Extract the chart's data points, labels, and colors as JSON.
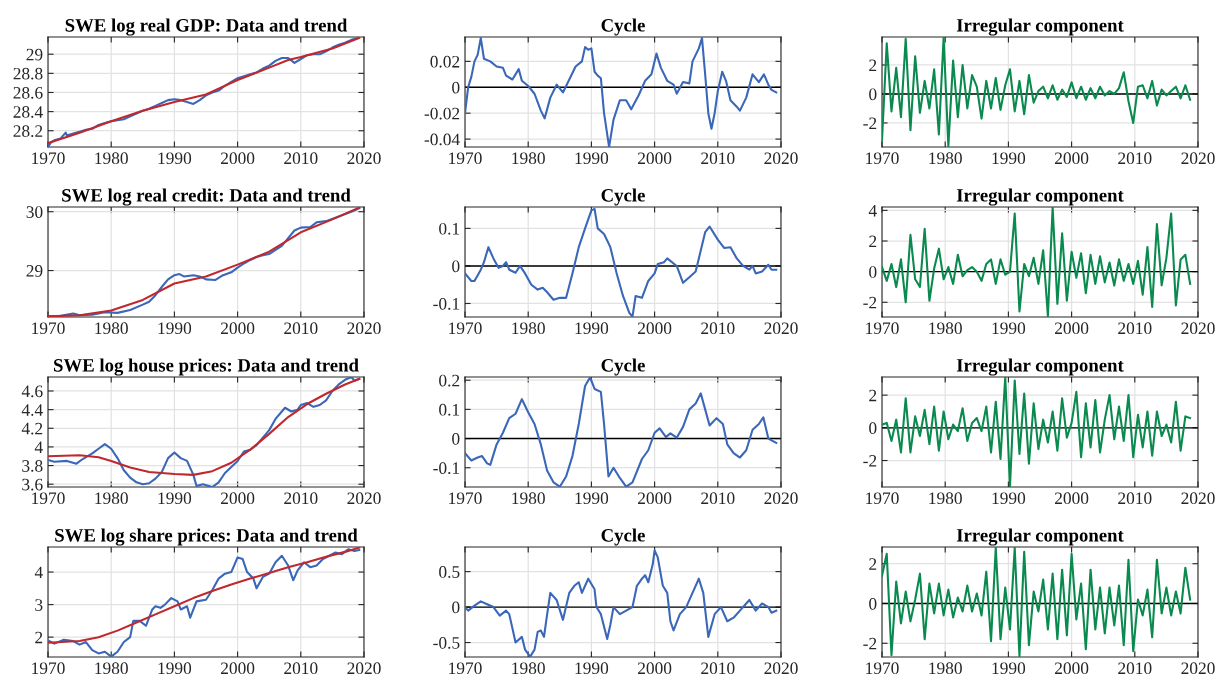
{
  "chart_data": [
    {
      "type": "line",
      "title": "SWE log real GDP: Data and trend",
      "xlim": [
        1970,
        2020
      ],
      "xticks": [
        1970,
        1980,
        1990,
        2000,
        2010,
        2020
      ],
      "ylim": [
        28.03,
        29.18
      ],
      "yticks": [
        28.2,
        28.4,
        28.6,
        28.8,
        29
      ],
      "grid": true,
      "series": [
        {
          "color": "#3a67b8",
          "x": [
            1970,
            1970.5,
            1971,
            1972,
            1972.8,
            1973,
            1974,
            1975,
            1976,
            1977,
            1978,
            1979,
            1980,
            1981,
            1982,
            1983,
            1984,
            1985,
            1986,
            1987,
            1988,
            1989,
            1990,
            1991,
            1992,
            1993,
            1994,
            1995,
            1996,
            1997,
            1998,
            1999,
            2000,
            2001,
            2002,
            2003,
            2004,
            2005,
            2006,
            2007,
            2008,
            2009,
            2010,
            2011,
            2012,
            2013,
            2014,
            2015,
            2016,
            2017,
            2018,
            2019
          ],
          "values": [
            28.03,
            28.08,
            28.1,
            28.12,
            28.18,
            28.15,
            28.17,
            28.19,
            28.21,
            28.22,
            28.26,
            28.28,
            28.3,
            28.31,
            28.32,
            28.35,
            28.38,
            28.41,
            28.43,
            28.46,
            28.49,
            28.52,
            28.53,
            28.52,
            28.5,
            28.48,
            28.52,
            28.57,
            28.6,
            28.62,
            28.67,
            28.71,
            28.75,
            28.77,
            28.79,
            28.81,
            28.85,
            28.88,
            28.93,
            28.96,
            28.96,
            28.91,
            28.95,
            28.99,
            29.0,
            29.0,
            29.03,
            29.07,
            29.1,
            29.12,
            29.15,
            29.17
          ]
        },
        {
          "color": "#c0282d",
          "x": [
            1970,
            1975,
            1980,
            1985,
            1990,
            1995,
            2000,
            2005,
            2008,
            2010,
            2015,
            2019.25
          ],
          "values": [
            28.07,
            28.18,
            28.3,
            28.41,
            28.5,
            28.58,
            28.73,
            28.86,
            28.94,
            28.97,
            29.06,
            29.17
          ]
        }
      ]
    },
    {
      "type": "line",
      "title": "Cycle",
      "xlim": [
        1970,
        2020
      ],
      "xticks": [
        1970,
        1980,
        1990,
        2000,
        2010,
        2020
      ],
      "ylim": [
        -0.0461,
        0.0388
      ],
      "yticks": [
        -0.04,
        -0.02,
        0,
        0.02
      ],
      "grid": true,
      "ref_lines": [
        {
          "axis": "y",
          "value": 0,
          "color": "#000000"
        }
      ],
      "series": [
        {
          "color": "#3a67b8",
          "x": [
            1970,
            1970.5,
            1971,
            1971.5,
            1972,
            1972.5,
            1973,
            1974,
            1975,
            1976,
            1976.5,
            1977.5,
            1978.5,
            1979,
            1980,
            1981,
            1982,
            1982.6,
            1983.5,
            1984.5,
            1985.5,
            1986.5,
            1987.5,
            1988.5,
            1989,
            1989.5,
            1990,
            1990.5,
            1991,
            1991.5,
            1992,
            1992.8,
            1993.5,
            1994.5,
            1995.5,
            1996.3,
            1997.5,
            1998.5,
            1999.5,
            2000.3,
            2001,
            2002,
            2003,
            2003.5,
            2004.5,
            2005.5,
            2006,
            2007,
            2007.5,
            2008,
            2008.5,
            2009,
            2009.5,
            2010,
            2010.7,
            2011.3,
            2012,
            2013,
            2013.5,
            2014.5,
            2015.5,
            2016.5,
            2017.3,
            2018,
            2018.5,
            2019.25
          ],
          "values": [
            -0.02,
            0,
            0.008,
            0.02,
            0.025,
            0.038,
            0.022,
            0.02,
            0.016,
            0.015,
            0.009,
            0.006,
            0.014,
            0.005,
            0.001,
            -0.005,
            -0.018,
            -0.024,
            -0.008,
            0.002,
            -0.004,
            0.006,
            0.016,
            0.02,
            0.031,
            0.029,
            0.03,
            0.012,
            0.009,
            0.007,
            -0.02,
            -0.046,
            -0.025,
            -0.01,
            -0.01,
            -0.017,
            -0.006,
            0.005,
            0.01,
            0.026,
            0.015,
            0.005,
            0.002,
            -0.005,
            0.004,
            0.003,
            0.02,
            0.03,
            0.038,
            0.01,
            -0.02,
            -0.032,
            -0.02,
            -0.003,
            0.012,
            0.005,
            -0.01,
            -0.015,
            -0.018,
            -0.008,
            0.01,
            0.004,
            0.01,
            0.002,
            -0.002,
            -0.004
          ]
        }
      ]
    },
    {
      "type": "line",
      "title": "Irregular component",
      "xlim": [
        1970,
        2020
      ],
      "xticks": [
        1970,
        1980,
        1990,
        2000,
        2010,
        2020
      ],
      "ylim": [
        -3.66,
        3.93
      ],
      "yticks": [
        -2,
        0,
        2
      ],
      "grid": true,
      "ref_lines": [
        {
          "axis": "y",
          "value": 0,
          "color": "#000000"
        }
      ],
      "x": [
        1970,
        1970.75,
        1971.5,
        1972.25,
        1973,
        1973.75,
        1974.5,
        1975.25,
        1976,
        1976.75,
        1977.5,
        1978.25,
        1979,
        1979.75,
        1980.5,
        1981.25,
        1982,
        1982.75,
        1983.5,
        1984.25,
        1985,
        1985.75,
        1986.5,
        1987.25,
        1988,
        1988.75,
        1989.5,
        1990.25,
        1991,
        1991.75,
        1992.5,
        1993.25,
        1994,
        1994.75,
        1995.5,
        1996.25,
        1997,
        1997.75,
        1998.5,
        1999.25,
        2000,
        2000.75,
        2001.5,
        2002.25,
        2003,
        2003.75,
        2004.5,
        2005.25,
        2006,
        2006.75,
        2007.5,
        2008.25,
        2009,
        2009.75,
        2010.5,
        2011.25,
        2012,
        2012.75,
        2013.5,
        2014.25,
        2015,
        2015.75,
        2016.5,
        2017.25,
        2018,
        2018.75
      ],
      "series": [
        {
          "color": "#0a8a4e",
          "values": [
            -3.2,
            3.5,
            -1.2,
            1.8,
            -1.6,
            3.8,
            -2.5,
            2.6,
            -1.3,
            0.9,
            -1.0,
            1.7,
            -2.8,
            3.9,
            -3.6,
            2.3,
            -1.6,
            2.0,
            -1.0,
            1.3,
            0.5,
            -1.7,
            0.9,
            -1.0,
            1.1,
            -1.1,
            0.6,
            1.7,
            -1.2,
            0.9,
            -1.4,
            1.3,
            -0.6,
            0.2,
            0.5,
            -0.3,
            0.6,
            -0.4,
            0.3,
            -0.2,
            0.8,
            -0.3,
            0.5,
            -0.4,
            0.4,
            -0.3,
            0.5,
            -0.1,
            0.2,
            0.0,
            0.4,
            1.5,
            -0.5,
            -2.0,
            0.5,
            0.6,
            -0.3,
            0.9,
            -0.8,
            0.3,
            -0.1,
            0.2,
            0.5,
            -0.3,
            0.6,
            -0.4
          ]
        }
      ]
    },
    {
      "type": "line",
      "title": "SWE log real credit: Data and trend",
      "xlim": [
        1970,
        2020
      ],
      "xticks": [
        1970,
        1980,
        1990,
        2000,
        2010,
        2020
      ],
      "ylim": [
        28.21,
        30.08
      ],
      "yticks": [
        29,
        30
      ],
      "grid": true,
      "series": [
        {
          "color": "#3a67b8",
          "x": [
            1970,
            1972,
            1974,
            1975,
            1977,
            1979,
            1981,
            1983,
            1985,
            1986,
            1987,
            1988,
            1989,
            1990,
            1990.8,
            1991.5,
            1993,
            1994,
            1995,
            1996.5,
            1997.5,
            1999,
            2000,
            2001,
            2002,
            2003,
            2004,
            2005,
            2006,
            2007,
            2008,
            2009,
            2010,
            2011.5,
            2012.5,
            2014,
            2016,
            2018,
            2019.25
          ],
          "values": [
            28.22,
            28.23,
            28.27,
            28.24,
            28.25,
            28.29,
            28.28,
            28.33,
            28.42,
            28.47,
            28.58,
            28.72,
            28.85,
            28.92,
            28.94,
            28.9,
            28.92,
            28.9,
            28.85,
            28.84,
            28.91,
            28.97,
            29.05,
            29.12,
            29.18,
            29.23,
            29.26,
            29.28,
            29.35,
            29.42,
            29.55,
            29.68,
            29.73,
            29.74,
            29.82,
            29.84,
            29.92,
            30.0,
            30.06
          ]
        },
        {
          "color": "#c0282d",
          "x": [
            1970,
            1975,
            1980,
            1985,
            1990,
            1995,
            2000,
            2005,
            2010,
            2015,
            2019.25
          ],
          "values": [
            28.22,
            28.24,
            28.32,
            28.5,
            28.78,
            28.9,
            29.1,
            29.32,
            29.65,
            29.87,
            30.07
          ]
        }
      ]
    },
    {
      "type": "line",
      "title": "Cycle",
      "xlim": [
        1970,
        2020
      ],
      "xticks": [
        1970,
        1980,
        1990,
        2000,
        2010,
        2020
      ],
      "ylim": [
        -0.136,
        0.157
      ],
      "yticks": [
        -0.1,
        0,
        0.1
      ],
      "grid": true,
      "ref_lines": [
        {
          "axis": "y",
          "value": 0,
          "color": "#000000"
        }
      ],
      "series": [
        {
          "color": "#3a67b8",
          "x": [
            1970,
            1971,
            1971.5,
            1972.5,
            1973,
            1973.7,
            1974.5,
            1975.3,
            1976,
            1976.5,
            1977,
            1978,
            1978.7,
            1979.5,
            1980.5,
            1981.5,
            1982.3,
            1983,
            1984,
            1985,
            1986,
            1987,
            1988,
            1989,
            1990,
            1990.5,
            1991,
            1992,
            1993,
            1994,
            1995,
            1996,
            1996.5,
            1997,
            1998,
            1999,
            2000,
            2000.5,
            2001.5,
            2002,
            2003.5,
            2004.5,
            2005.5,
            2006.5,
            2007,
            2008,
            2008.7,
            2010,
            2011,
            2012,
            2013,
            2014,
            2015,
            2015.5,
            2016,
            2017,
            2018,
            2018.5,
            2019.25
          ],
          "values": [
            -0.02,
            -0.04,
            -0.04,
            -0.01,
            0.01,
            0.05,
            0.02,
            -0.005,
            0.0,
            0.01,
            -0.01,
            -0.018,
            0,
            -0.02,
            -0.05,
            -0.063,
            -0.058,
            -0.07,
            -0.09,
            -0.085,
            -0.085,
            -0.02,
            0.05,
            0.1,
            0.148,
            0.152,
            0.1,
            0.085,
            0.05,
            -0.02,
            -0.08,
            -0.125,
            -0.135,
            -0.08,
            -0.085,
            -0.04,
            -0.02,
            0.005,
            0.01,
            0.02,
            0.0,
            -0.045,
            -0.03,
            -0.015,
            0.02,
            0.09,
            0.105,
            0.07,
            0.048,
            0.05,
            0.02,
            0.0,
            -0.01,
            0.0,
            -0.02,
            -0.015,
            0.003,
            -0.01,
            -0.01
          ]
        }
      ]
    },
    {
      "type": "line",
      "title": "Irregular component",
      "xlim": [
        1970,
        2020
      ],
      "xticks": [
        1970,
        1980,
        1990,
        2000,
        2010,
        2020
      ],
      "ylim": [
        -2.96,
        4.22
      ],
      "yticks": [
        -2,
        0,
        2,
        4
      ],
      "grid": true,
      "ref_lines": [
        {
          "axis": "y",
          "value": 0,
          "color": "#000000"
        }
      ],
      "x": [
        1970,
        1970.75,
        1971.5,
        1972.25,
        1973,
        1973.75,
        1974.5,
        1975.25,
        1976,
        1976.75,
        1977.5,
        1978.25,
        1979,
        1979.75,
        1980.5,
        1981.25,
        1982,
        1982.75,
        1983.5,
        1984.25,
        1985,
        1985.75,
        1986.5,
        1987.25,
        1988,
        1988.75,
        1989.5,
        1990.25,
        1991,
        1991.75,
        1992.5,
        1993.25,
        1994,
        1994.75,
        1995.5,
        1996.25,
        1997,
        1997.75,
        1998.5,
        1999.25,
        2000,
        2000.75,
        2001.5,
        2002.25,
        2003,
        2003.75,
        2004.5,
        2005.25,
        2006,
        2006.75,
        2007.5,
        2008.25,
        2009,
        2009.75,
        2010.5,
        2011.25,
        2012,
        2012.75,
        2013.5,
        2014.25,
        2015,
        2015.75,
        2016.5,
        2017.25,
        2018,
        2018.75
      ],
      "series": [
        {
          "color": "#0a8a4e",
          "values": [
            0.3,
            -0.6,
            0.5,
            -1.0,
            0.8,
            -2.0,
            2.4,
            -0.5,
            -1.0,
            2.8,
            -1.9,
            0.2,
            1.5,
            -0.5,
            0.3,
            -0.8,
            1.1,
            -0.3,
            0.1,
            0.3,
            0.0,
            -0.6,
            0.5,
            0.8,
            -0.8,
            0.8,
            -0.2,
            0.0,
            3.8,
            -2.6,
            0.5,
            -0.3,
            0.9,
            -0.8,
            1.4,
            -2.9,
            4.2,
            -2.1,
            2.5,
            -1.9,
            1.3,
            -0.4,
            1.2,
            -1.4,
            1.1,
            -0.8,
            1.0,
            -0.7,
            0.6,
            -0.9,
            0.8,
            -0.6,
            0.5,
            -0.8,
            0.7,
            -1.5,
            1.6,
            -2.3,
            3.1,
            -0.9,
            0.9,
            3.8,
            -2.2,
            0.8,
            1.1,
            -0.8
          ]
        }
      ]
    },
    {
      "type": "line",
      "title": "SWE log house prices: Data and trend",
      "xlim": [
        1970,
        2020
      ],
      "xticks": [
        1970,
        1980,
        1990,
        2000,
        2010,
        2020
      ],
      "ylim": [
        3.57,
        4.75
      ],
      "yticks": [
        3.6,
        3.8,
        4,
        4.2,
        4.4,
        4.6
      ],
      "grid": true,
      "series": [
        {
          "color": "#3a67b8",
          "x": [
            1970,
            1971,
            1973,
            1974.5,
            1975.5,
            1977,
            1978,
            1979,
            1980,
            1981,
            1982,
            1983,
            1984,
            1985,
            1986,
            1987,
            1988,
            1989,
            1990,
            1991,
            1992,
            1993,
            1993.5,
            1994.5,
            1996,
            1997,
            1998,
            2000,
            2001,
            2002,
            2003,
            2004,
            2005,
            2006,
            2007,
            2007.5,
            2008.5,
            2009.5,
            2010,
            2011,
            2012,
            2013,
            2014,
            2015,
            2016,
            2017,
            2018,
            2018.5,
            2019.25
          ],
          "values": [
            3.86,
            3.84,
            3.85,
            3.82,
            3.87,
            3.93,
            3.98,
            4.03,
            3.98,
            3.88,
            3.75,
            3.67,
            3.62,
            3.6,
            3.61,
            3.66,
            3.73,
            3.88,
            3.94,
            3.88,
            3.85,
            3.7,
            3.58,
            3.6,
            3.57,
            3.62,
            3.72,
            3.85,
            3.95,
            3.97,
            4.02,
            4.1,
            4.18,
            4.3,
            4.38,
            4.42,
            4.38,
            4.4,
            4.45,
            4.47,
            4.43,
            4.45,
            4.5,
            4.6,
            4.67,
            4.72,
            4.75,
            4.71,
            4.73
          ]
        },
        {
          "color": "#c0282d",
          "x": [
            1970,
            1975,
            1978,
            1980,
            1983,
            1986,
            1990,
            1993,
            1996,
            1999,
            2002,
            2005,
            2008,
            2011,
            2014,
            2017,
            2019.25
          ],
          "values": [
            3.9,
            3.91,
            3.89,
            3.85,
            3.78,
            3.73,
            3.71,
            3.7,
            3.74,
            3.83,
            3.97,
            4.14,
            4.32,
            4.46,
            4.57,
            4.67,
            4.73
          ]
        }
      ]
    },
    {
      "type": "line",
      "title": "Cycle",
      "xlim": [
        1970,
        2020
      ],
      "xticks": [
        1970,
        1980,
        1990,
        2000,
        2010,
        2020
      ],
      "ylim": [
        -0.166,
        0.211
      ],
      "yticks": [
        -0.1,
        0,
        0.1,
        0.2
      ],
      "grid": true,
      "ref_lines": [
        {
          "axis": "y",
          "value": 0,
          "color": "#000000"
        }
      ],
      "series": [
        {
          "color": "#3a67b8",
          "x": [
            1970,
            1971,
            1972,
            1972.7,
            1973.5,
            1974,
            1975,
            1976,
            1977,
            1978,
            1979,
            1980,
            1981,
            1982,
            1983,
            1984,
            1985,
            1986,
            1987,
            1988,
            1989,
            1989.8,
            1990.5,
            1991.5,
            1992,
            1992.7,
            1993.5,
            1994.5,
            1995.5,
            1996.5,
            1998,
            1999,
            2000,
            2000.8,
            2001.8,
            2002.5,
            2003.5,
            2004.5,
            2005.5,
            2006.5,
            2007.3,
            2008,
            2008.7,
            2009.8,
            2010.8,
            2011.5,
            2012.5,
            2013.5,
            2014.5,
            2015.5,
            2016.5,
            2017.2,
            2018,
            2019.25
          ],
          "values": [
            -0.05,
            -0.075,
            -0.065,
            -0.06,
            -0.085,
            -0.09,
            -0.02,
            0.02,
            0.07,
            0.085,
            0.135,
            0.09,
            0.05,
            -0.02,
            -0.11,
            -0.15,
            -0.165,
            -0.13,
            -0.06,
            0.05,
            0.18,
            0.21,
            0.17,
            0.16,
            0.05,
            -0.13,
            -0.1,
            -0.135,
            -0.165,
            -0.15,
            -0.07,
            -0.04,
            0.02,
            0.035,
            0.005,
            0.018,
            0.003,
            0.04,
            0.1,
            0.12,
            0.155,
            0.1,
            0.045,
            0.07,
            0.05,
            -0.02,
            -0.05,
            -0.065,
            -0.04,
            0.03,
            0.05,
            0.073,
            0.0,
            -0.015
          ]
        }
      ]
    },
    {
      "type": "line",
      "title": "Irregular component",
      "xlim": [
        1970,
        2020
      ],
      "xticks": [
        1970,
        1980,
        1990,
        2000,
        2010,
        2020
      ],
      "ylim": [
        -3.62,
        3.11
      ],
      "yticks": [
        -2,
        0,
        2
      ],
      "grid": true,
      "ref_lines": [
        {
          "axis": "y",
          "value": 0,
          "color": "#000000"
        }
      ],
      "x": [
        1970,
        1970.75,
        1971.5,
        1972.25,
        1973,
        1973.75,
        1974.5,
        1975.25,
        1976,
        1976.75,
        1977.5,
        1978.25,
        1979,
        1979.75,
        1980.5,
        1981.25,
        1982,
        1982.75,
        1983.5,
        1984.25,
        1985,
        1985.75,
        1986.5,
        1987.25,
        1988,
        1988.75,
        1989.5,
        1990.25,
        1991,
        1991.75,
        1992.5,
        1993.25,
        1994,
        1994.75,
        1995.5,
        1996.25,
        1997,
        1997.75,
        1998.5,
        1999.25,
        2000,
        2000.75,
        2001.5,
        2002.25,
        2003,
        2003.75,
        2004.5,
        2005.25,
        2006,
        2006.75,
        2007.5,
        2008.25,
        2009,
        2009.75,
        2010.5,
        2011.25,
        2012,
        2012.75,
        2013.5,
        2014.25,
        2015,
        2015.75,
        2016.5,
        2017.25,
        2018,
        2018.75
      ],
      "series": [
        {
          "color": "#0a8a4e",
          "values": [
            0.2,
            0.3,
            -0.8,
            0.5,
            -1.5,
            1.8,
            -1.5,
            0.7,
            -0.5,
            1.1,
            -1.0,
            1.3,
            -1.4,
            1.0,
            -0.7,
            0.2,
            -0.2,
            1.2,
            -0.8,
            0.3,
            0.6,
            -0.2,
            1.3,
            -1.5,
            1.6,
            -1.9,
            3.1,
            -3.6,
            2.9,
            -1.6,
            2.1,
            -2.2,
            1.5,
            -1.3,
            0.5,
            -0.9,
            1.0,
            -1.4,
            1.8,
            -0.6,
            0.3,
            2.2,
            -1.8,
            1.5,
            -1.2,
            1.7,
            -1.5,
            0.5,
            2.0,
            -0.7,
            1.3,
            -0.8,
            2.0,
            -1.8,
            0.8,
            -1.2,
            1.0,
            -1.7,
            1.0,
            -0.5,
            0.2,
            -0.9,
            1.6,
            -1.4,
            0.7,
            0.6
          ]
        }
      ]
    },
    {
      "type": "line",
      "title": "SWE log share prices: Data and trend",
      "xlim": [
        1970,
        2020
      ],
      "xticks": [
        1970,
        1980,
        1990,
        2000,
        2010,
        2020
      ],
      "ylim": [
        1.39,
        4.77
      ],
      "yticks": [
        2,
        3,
        4
      ],
      "grid": true,
      "series": [
        {
          "color": "#3a67b8",
          "x": [
            1970,
            1971,
            1972.5,
            1974,
            1975,
            1976,
            1977,
            1978,
            1979,
            1980,
            1981,
            1982,
            1983,
            1983.5,
            1984.5,
            1985.5,
            1986.5,
            1987,
            1987.8,
            1988.5,
            1989.5,
            1990.5,
            1991,
            1992,
            1992.5,
            1993.5,
            1995,
            1996,
            1997,
            1998,
            1999,
            2000,
            2000.8,
            2001.5,
            2002.5,
            2003,
            2004,
            2005,
            2006,
            2007,
            2008,
            2008.8,
            2009.5,
            2010.5,
            2011.5,
            2012.5,
            2013.5,
            2014.5,
            2015.5,
            2016.5,
            2017.5,
            2018.5,
            2019.25
          ],
          "values": [
            1.9,
            1.8,
            1.92,
            1.88,
            1.77,
            1.85,
            1.6,
            1.5,
            1.55,
            1.4,
            1.55,
            1.85,
            2.0,
            2.5,
            2.5,
            2.35,
            2.85,
            2.95,
            2.9,
            3.0,
            3.2,
            3.1,
            2.85,
            2.95,
            2.6,
            3.1,
            3.15,
            3.45,
            3.8,
            3.95,
            4.0,
            4.45,
            4.4,
            4.0,
            3.8,
            3.5,
            3.85,
            3.95,
            4.3,
            4.5,
            4.2,
            3.75,
            4.05,
            4.3,
            4.15,
            4.2,
            4.4,
            4.5,
            4.6,
            4.55,
            4.7,
            4.65,
            4.68
          ]
        },
        {
          "color": "#c0282d",
          "x": [
            1970,
            1975,
            1978,
            1981,
            1984,
            1987,
            1990,
            1993,
            1996,
            1999,
            2002,
            2005,
            2008,
            2011,
            2014,
            2017,
            2019.25
          ],
          "values": [
            1.83,
            1.88,
            2.0,
            2.2,
            2.45,
            2.7,
            2.95,
            3.2,
            3.42,
            3.62,
            3.8,
            3.97,
            4.15,
            4.3,
            4.47,
            4.62,
            4.75
          ]
        }
      ]
    },
    {
      "type": "line",
      "title": "Cycle",
      "xlim": [
        1970,
        2020
      ],
      "xticks": [
        1970,
        1980,
        1990,
        2000,
        2010,
        2020
      ],
      "ylim": [
        -0.704,
        0.847
      ],
      "yticks": [
        -0.5,
        0,
        0.5
      ],
      "grid": true,
      "ref_lines": [
        {
          "axis": "y",
          "value": 0,
          "color": "#000000"
        }
      ],
      "series": [
        {
          "color": "#3a67b8",
          "x": [
            1970,
            1970.5,
            1971.5,
            1972.5,
            1973.5,
            1974.5,
            1975.5,
            1976.5,
            1977,
            1977.5,
            1978,
            1979,
            1979.5,
            1980.3,
            1981,
            1981.5,
            1982,
            1982.5,
            1983,
            1983.5,
            1984.5,
            1985.5,
            1986.5,
            1987.3,
            1988,
            1988.5,
            1989.5,
            1990.5,
            1990.8,
            1991.5,
            1992.5,
            1993,
            1993.5,
            1994.5,
            1995.5,
            1996.5,
            1997.2,
            1998,
            1998.5,
            1999,
            1999.7,
            2000,
            2000.5,
            2001.3,
            2002,
            2002.5,
            2003,
            2004,
            2005,
            2006,
            2007,
            2007.7,
            2008.5,
            2009.5,
            2010.5,
            2011.5,
            2012.5,
            2013.5,
            2014.5,
            2015,
            2016,
            2017,
            2018,
            2018.5,
            2019.25
          ],
          "values": [
            0.0,
            -0.05,
            0.02,
            0.08,
            0.04,
            0.0,
            -0.12,
            -0.05,
            -0.1,
            -0.3,
            -0.5,
            -0.42,
            -0.6,
            -0.7,
            -0.6,
            -0.35,
            -0.33,
            -0.42,
            -0.1,
            0.2,
            0.1,
            -0.18,
            0.2,
            0.3,
            0.35,
            0.2,
            0.4,
            0.25,
            0.0,
            -0.1,
            -0.45,
            -0.25,
            0.0,
            -0.1,
            -0.05,
            0.0,
            0.3,
            0.4,
            0.45,
            0.35,
            0.6,
            0.8,
            0.7,
            0.3,
            0.2,
            -0.2,
            -0.33,
            -0.1,
            0.0,
            0.2,
            0.4,
            0.2,
            -0.42,
            -0.1,
            0.0,
            -0.2,
            -0.15,
            -0.05,
            0.05,
            0.1,
            -0.05,
            0.05,
            0.0,
            -0.08,
            -0.05
          ]
        }
      ]
    },
    {
      "type": "line",
      "title": "Irregular component",
      "xlim": [
        1970,
        2020
      ],
      "xticks": [
        1970,
        1980,
        1990,
        2000,
        2010,
        2020
      ],
      "ylim": [
        -2.69,
        2.84
      ],
      "yticks": [
        -2,
        0,
        2
      ],
      "grid": true,
      "ref_lines": [
        {
          "axis": "y",
          "value": 0,
          "color": "#000000"
        }
      ],
      "x": [
        1970,
        1970.75,
        1971.5,
        1972.25,
        1973,
        1973.75,
        1974.5,
        1975.25,
        1976,
        1976.75,
        1977.5,
        1978.25,
        1979,
        1979.75,
        1980.5,
        1981.25,
        1982,
        1982.75,
        1983.5,
        1984.25,
        1985,
        1985.75,
        1986.5,
        1987.25,
        1988,
        1988.75,
        1989.5,
        1990.25,
        1991,
        1991.75,
        1992.5,
        1993.25,
        1994,
        1994.75,
        1995.5,
        1996.25,
        1997,
        1997.75,
        1998.5,
        1999.25,
        2000,
        2000.75,
        2001.5,
        2002.25,
        2003,
        2003.75,
        2004.5,
        2005.25,
        2006,
        2006.75,
        2007.5,
        2008.25,
        2009,
        2009.75,
        2010.5,
        2011.25,
        2012,
        2012.75,
        2013.5,
        2014.25,
        2015,
        2015.75,
        2016.5,
        2017.25,
        2018,
        2018.75
      ],
      "series": [
        {
          "color": "#0a8a4e",
          "values": [
            1.4,
            2.5,
            -2.6,
            1.1,
            -1.0,
            0.6,
            -0.9,
            0.2,
            1.5,
            -1.8,
            1.0,
            -0.5,
            1.0,
            -0.6,
            0.7,
            -0.7,
            0.3,
            -0.4,
            0.9,
            -0.4,
            0.5,
            -0.6,
            1.6,
            -1.9,
            2.8,
            -1.8,
            0.8,
            -1.3,
            2.8,
            -2.65,
            2.6,
            -2.1,
            0.6,
            -0.4,
            1.2,
            -1.3,
            1.5,
            -1.8,
            1.7,
            -1.6,
            2.5,
            -0.8,
            1.0,
            -2.3,
            1.7,
            -1.3,
            0.8,
            -1.5,
            0.8,
            -1.1,
            0.9,
            -2.1,
            2.2,
            -2.4,
            0.2,
            -0.6,
            0.7,
            -1.7,
            2.2,
            -0.5,
            0.8,
            -0.6,
            0.6,
            -0.5,
            1.8,
            0.2
          ]
        }
      ]
    }
  ]
}
